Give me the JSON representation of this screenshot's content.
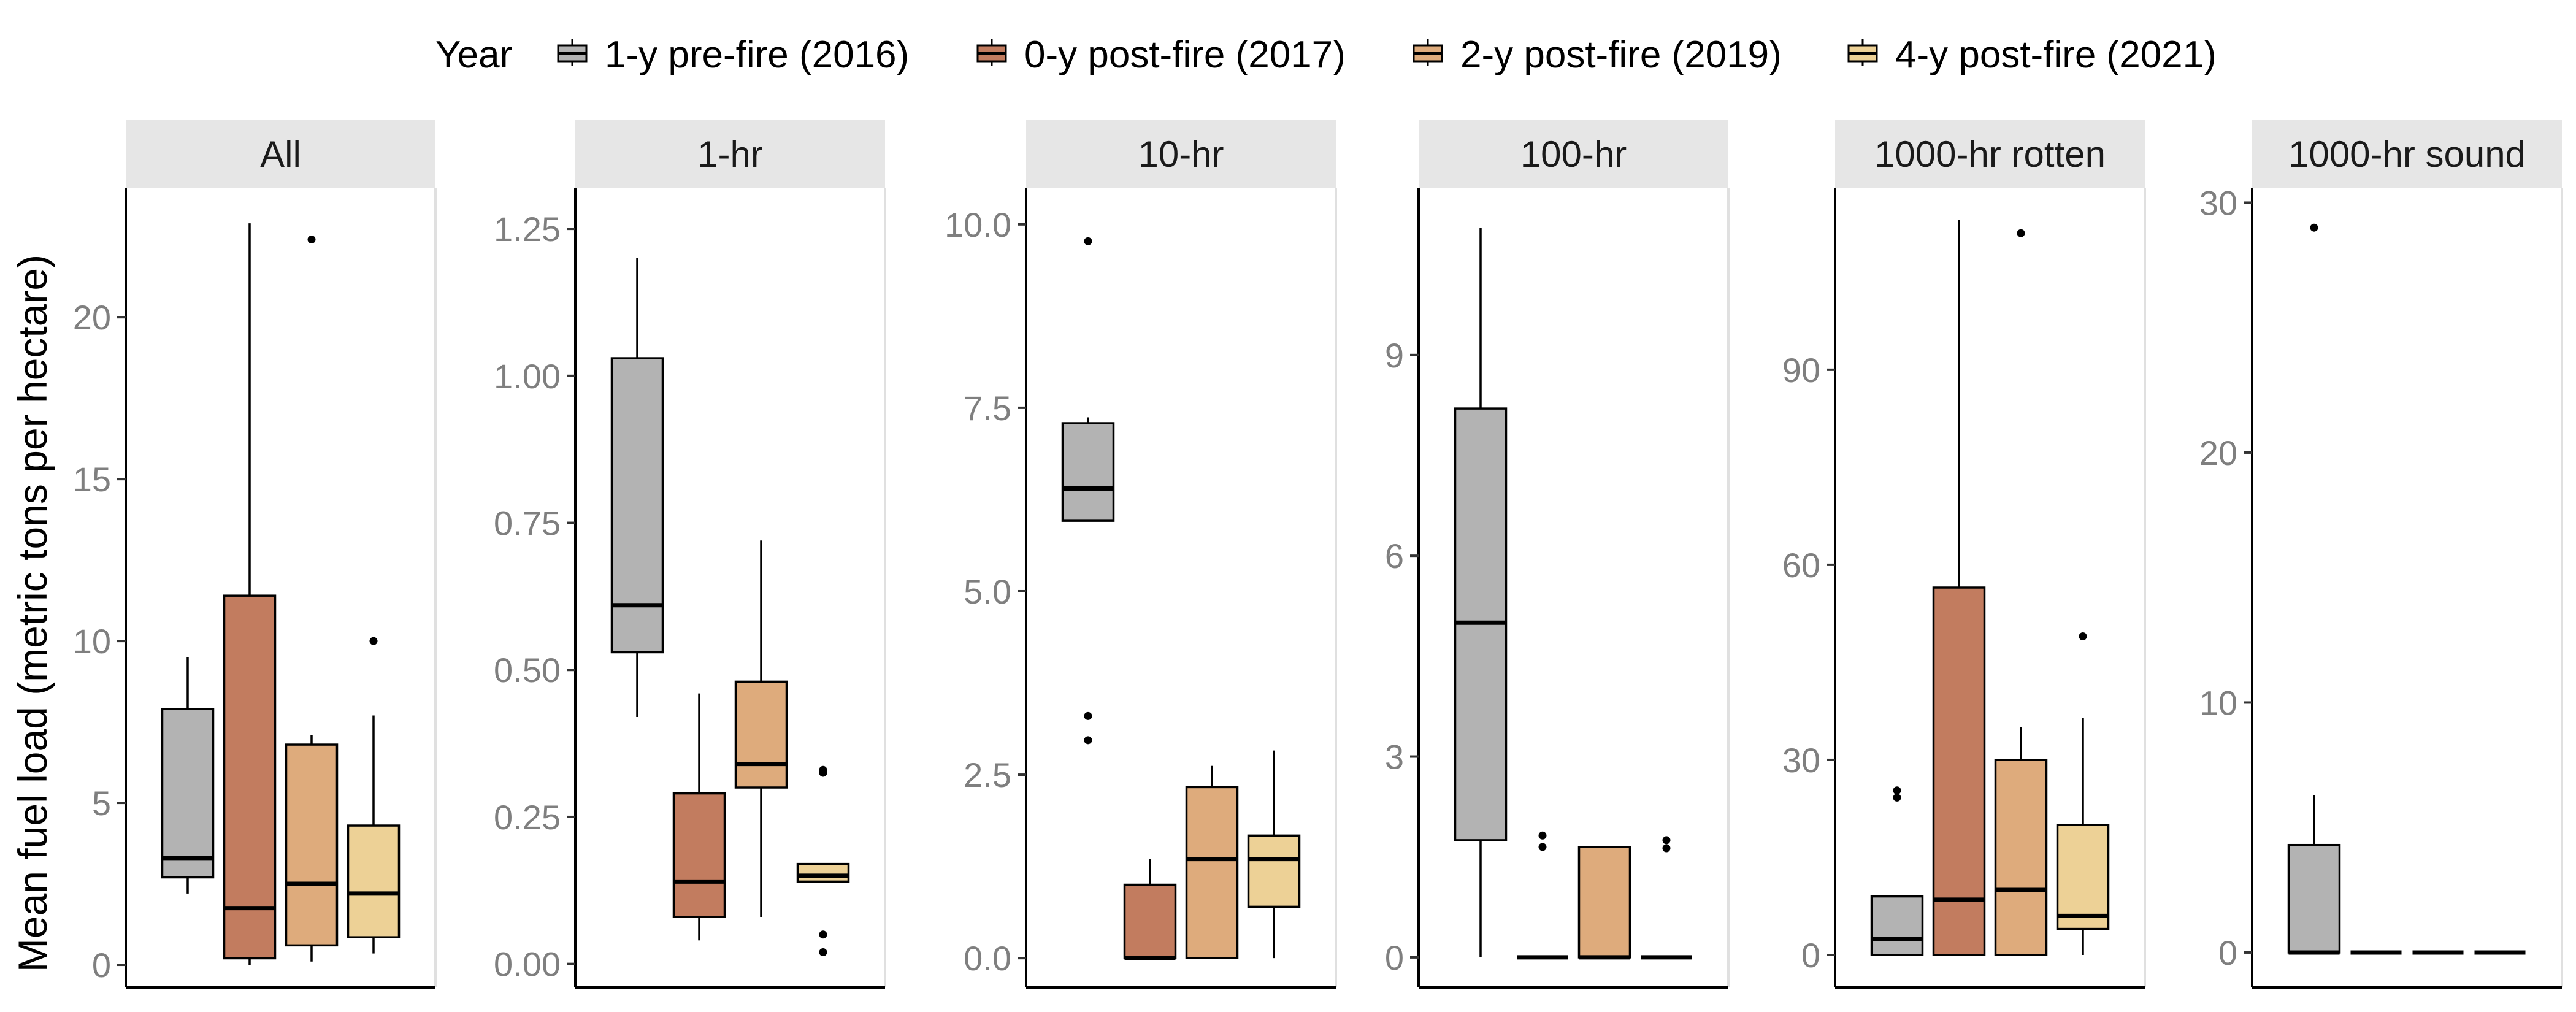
{
  "legend": {
    "title": "Year",
    "items": [
      {
        "label": "1-y pre-fire (2016)",
        "color": "#b3b3b3"
      },
      {
        "label": "0-y post-fire (2017)",
        "color": "#c27c5f"
      },
      {
        "label": "2-y post-fire (2019)",
        "color": "#deab7c"
      },
      {
        "label": "4-y post-fire (2021)",
        "color": "#edd196"
      }
    ]
  },
  "chart_data": {
    "type": "boxplot",
    "ylabel": "Mean fuel load (metric tons per hectare)",
    "legend_position": "top",
    "grid": false,
    "groups": [
      "1-y pre-fire (2016)",
      "0-y post-fire (2017)",
      "2-y post-fire (2019)",
      "4-y post-fire (2021)"
    ],
    "facets": [
      {
        "title": "All",
        "ylim": [
          -0.7,
          24
        ],
        "ticks": [
          0,
          5,
          10,
          15,
          20
        ],
        "tick_labels": [
          "0",
          "5",
          "10",
          "15",
          "20"
        ],
        "boxes": [
          {
            "min": 2.2,
            "q1": 2.7,
            "median": 3.3,
            "q3": 7.9,
            "max": 9.5,
            "outliers": []
          },
          {
            "min": 0.0,
            "q1": 0.2,
            "median": 1.75,
            "q3": 11.4,
            "max": 22.9,
            "outliers": []
          },
          {
            "min": 0.1,
            "q1": 0.6,
            "median": 2.5,
            "q3": 6.8,
            "max": 7.1,
            "outliers": [
              22.4
            ]
          },
          {
            "min": 0.35,
            "q1": 0.85,
            "median": 2.2,
            "q3": 4.3,
            "max": 7.7,
            "outliers": [
              10.0
            ]
          }
        ]
      },
      {
        "title": "1-hr",
        "ylim": [
          -0.04,
          1.32
        ],
        "ticks": [
          0,
          0.25,
          0.5,
          0.75,
          1.0,
          1.25
        ],
        "tick_labels": [
          "0.00",
          "0.25",
          "0.50",
          "0.75",
          "1.00",
          "1.25"
        ],
        "boxes": [
          {
            "min": 0.42,
            "q1": 0.53,
            "median": 0.61,
            "q3": 1.03,
            "max": 1.2,
            "outliers": []
          },
          {
            "min": 0.04,
            "q1": 0.08,
            "median": 0.14,
            "q3": 0.29,
            "max": 0.46,
            "outliers": []
          },
          {
            "min": 0.08,
            "q1": 0.3,
            "median": 0.34,
            "q3": 0.48,
            "max": 0.72,
            "outliers": []
          },
          {
            "min": 0.14,
            "q1": 0.14,
            "median": 0.15,
            "q3": 0.17,
            "max": 0.17,
            "outliers": [
              0.33,
              0.325,
              0.05,
              0.02
            ]
          }
        ]
      },
      {
        "title": "10-hr",
        "ylim": [
          -0.4,
          10.5
        ],
        "ticks": [
          0,
          2.5,
          5.0,
          7.5,
          10.0
        ],
        "tick_labels": [
          "0.0",
          "2.5",
          "5.0",
          "7.5",
          "10.0"
        ],
        "boxes": [
          {
            "min": 5.96,
            "q1": 5.96,
            "median": 6.4,
            "q3": 7.29,
            "max": 7.37,
            "outliers": [
              9.77,
              3.3,
              2.97
            ]
          },
          {
            "min": 0.0,
            "q1": 0.0,
            "median": 0.0,
            "q3": 1.0,
            "max": 1.35,
            "outliers": []
          },
          {
            "min": 0.0,
            "q1": 0.0,
            "median": 1.35,
            "q3": 2.33,
            "max": 2.62,
            "outliers": []
          },
          {
            "min": 0.0,
            "q1": 0.7,
            "median": 1.35,
            "q3": 1.67,
            "max": 2.83,
            "outliers": []
          }
        ]
      },
      {
        "title": "100-hr",
        "ylim": [
          -0.45,
          11.5
        ],
        "ticks": [
          0,
          3,
          6,
          9
        ],
        "tick_labels": [
          "0",
          "3",
          "6",
          "9"
        ],
        "boxes": [
          {
            "min": 0.0,
            "q1": 1.75,
            "median": 5.0,
            "q3": 8.2,
            "max": 10.9,
            "outliers": []
          },
          {
            "min": 0.0,
            "q1": 0.0,
            "median": 0.0,
            "q3": 0.0,
            "max": 0.0,
            "outliers": [
              1.82,
              1.65
            ]
          },
          {
            "min": 0.0,
            "q1": 0.0,
            "median": 0.0,
            "q3": 1.65,
            "max": 1.65,
            "outliers": []
          },
          {
            "min": 0.0,
            "q1": 0.0,
            "median": 0.0,
            "q3": 0.0,
            "max": 0.0,
            "outliers": [
              1.75,
              1.63
            ]
          }
        ]
      },
      {
        "title": "1000-hr rotten",
        "ylim": [
          -5,
          118
        ],
        "ticks": [
          0,
          30,
          60,
          90
        ],
        "tick_labels": [
          "0",
          "30",
          "60",
          "90"
        ],
        "boxes": [
          {
            "min": 0.0,
            "q1": 0.0,
            "median": 2.5,
            "q3": 9.0,
            "max": 9.0,
            "outliers": [
              25.3,
              24.2
            ]
          },
          {
            "min": 0.0,
            "q1": 0.0,
            "median": 8.5,
            "q3": 56.5,
            "max": 113.0,
            "outliers": []
          },
          {
            "min": 0.0,
            "q1": 0.0,
            "median": 10.0,
            "q3": 30.0,
            "max": 35.0,
            "outliers": [
              111.0
            ]
          },
          {
            "min": 0.0,
            "q1": 4.0,
            "median": 6.0,
            "q3": 20.0,
            "max": 36.5,
            "outliers": [
              49.0
            ]
          }
        ]
      },
      {
        "title": "1000-hr sound",
        "ylim": [
          -1.4,
          30.6
        ],
        "ticks": [
          0,
          10,
          20,
          30
        ],
        "tick_labels": [
          "0",
          "10",
          "20",
          "30"
        ],
        "boxes": [
          {
            "min": 0.0,
            "q1": 0.0,
            "median": 0.0,
            "q3": 4.3,
            "max": 6.3,
            "outliers": [
              29.0
            ]
          },
          {
            "min": 0.0,
            "q1": 0.0,
            "median": 0.0,
            "q3": 0.0,
            "max": 0.0,
            "outliers": []
          },
          {
            "min": 0.0,
            "q1": 0.0,
            "median": 0.0,
            "q3": 0.0,
            "max": 0.0,
            "outliers": []
          },
          {
            "min": 0.0,
            "q1": 0.0,
            "median": 0.0,
            "q3": 0.0,
            "max": 0.0,
            "outliers": []
          }
        ]
      }
    ]
  }
}
